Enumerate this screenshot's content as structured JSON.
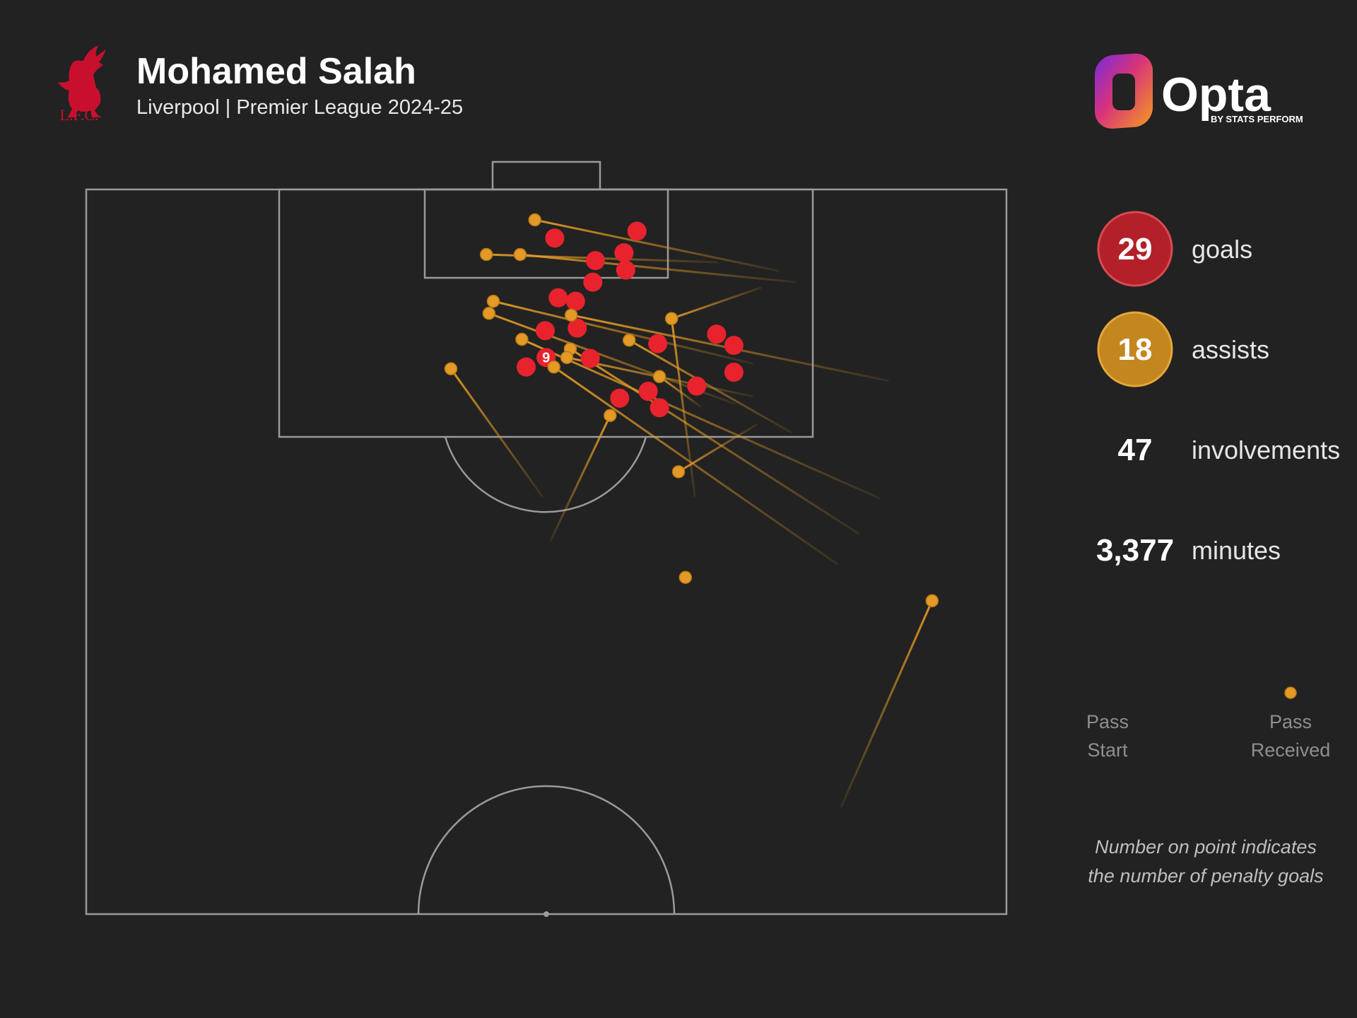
{
  "header": {
    "club_badge_text": "L.F.C.",
    "player_name": "Mohamed Salah",
    "subtitle": "Liverpool | Premier League 2024-25"
  },
  "brand": {
    "name": "Opta",
    "tagline": "BY STATS PERFORM"
  },
  "stats": [
    {
      "value": "29",
      "label": "goals",
      "badge_color": "#b3202a",
      "badge_border": "#d94a52"
    },
    {
      "value": "18",
      "label": "assists",
      "badge_color": "#c4861e",
      "badge_border": "#e6a63a"
    },
    {
      "value": "47",
      "label": "involvements"
    },
    {
      "value": "3,377",
      "label": "minutes"
    }
  ],
  "legend": {
    "pass_start": [
      "Pass",
      "Start"
    ],
    "pass_received": [
      "Pass",
      "Received"
    ]
  },
  "note": [
    "Number on point indicates",
    "the number of penalty goals"
  ],
  "colors": {
    "background": "#222222",
    "pitch_lines": "#9a9a9a",
    "goal_dot": "#e8232d",
    "assist_line": "#e39a26",
    "assist_dot": "#e39a26",
    "legend_text": "#8f8f8f",
    "note_text": "#bfbfbf"
  },
  "goals": [
    {
      "x": 641,
      "y": 275
    },
    {
      "x": 736,
      "y": 267
    },
    {
      "x": 688,
      "y": 301
    },
    {
      "x": 721,
      "y": 292
    },
    {
      "x": 723,
      "y": 312
    },
    {
      "x": 685,
      "y": 326
    },
    {
      "x": 645,
      "y": 344
    },
    {
      "x": 665,
      "y": 348
    },
    {
      "x": 630,
      "y": 382
    },
    {
      "x": 667,
      "y": 379
    },
    {
      "x": 631,
      "y": 413,
      "penalties": "9"
    },
    {
      "x": 608,
      "y": 424
    },
    {
      "x": 682,
      "y": 414
    },
    {
      "x": 760,
      "y": 397
    },
    {
      "x": 828,
      "y": 386
    },
    {
      "x": 848,
      "y": 399
    },
    {
      "x": 848,
      "y": 430
    },
    {
      "x": 805,
      "y": 446
    },
    {
      "x": 716,
      "y": 460
    },
    {
      "x": 749,
      "y": 452
    },
    {
      "x": 762,
      "y": 471
    }
  ],
  "assists": [
    {
      "start": [
        900,
        313
      ],
      "end": [
        618,
        254
      ]
    },
    {
      "start": [
        830,
        303
      ],
      "end": [
        562,
        294
      ]
    },
    {
      "start": [
        920,
        326
      ],
      "end": [
        601,
        294
      ]
    },
    {
      "start": [
        880,
        332
      ],
      "end": [
        776,
        368
      ]
    },
    {
      "start": [
        870,
        420
      ],
      "end": [
        570,
        348
      ]
    },
    {
      "start": [
        850,
        467
      ],
      "end": [
        565,
        362
      ]
    },
    {
      "start": [
        1027,
        440
      ],
      "end": [
        660,
        364
      ]
    },
    {
      "start": [
        1017,
        576
      ],
      "end": [
        603,
        392
      ]
    },
    {
      "start": [
        993,
        617
      ],
      "end": [
        659,
        403
      ]
    },
    {
      "start": [
        968,
        652
      ],
      "end": [
        640,
        424
      ]
    },
    {
      "start": [
        870,
        458
      ],
      "end": [
        655,
        413
      ]
    },
    {
      "start": [
        915,
        500
      ],
      "end": [
        727,
        393
      ]
    },
    {
      "start": [
        803,
        574
      ],
      "end": [
        776,
        368
      ]
    },
    {
      "start": [
        810,
        470
      ],
      "end": [
        762,
        435
      ]
    },
    {
      "start": [
        627,
        574
      ],
      "end": [
        521,
        426
      ]
    },
    {
      "start": [
        636,
        625
      ],
      "end": [
        705,
        480
      ]
    },
    {
      "start": [
        875,
        490
      ],
      "end": [
        784,
        545
      ]
    },
    {
      "start": [
        972,
        932
      ],
      "end": [
        1077,
        694
      ]
    },
    {
      "start": null,
      "end": [
        792,
        667
      ]
    }
  ]
}
